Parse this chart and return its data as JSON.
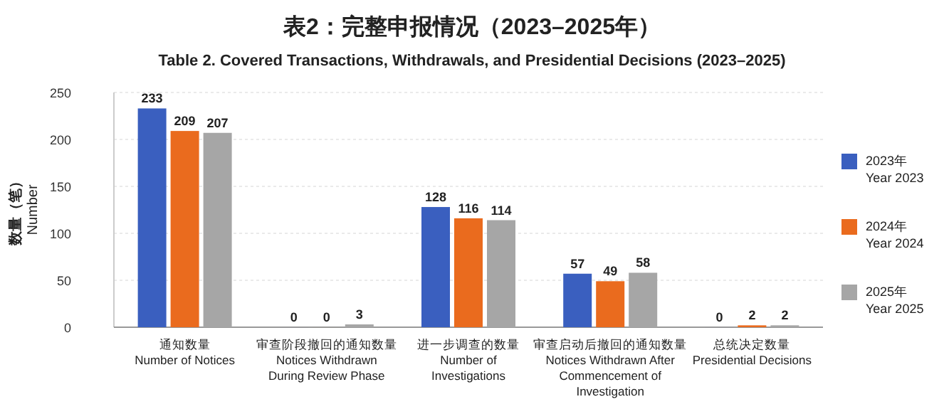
{
  "chart_data": {
    "type": "bar",
    "title": "表2：完整申报情况（2023–2025年）",
    "subtitle": "Table 2. Covered Transactions, Withdrawals, and Presidential Decisions (2023–2025)",
    "ylabel": "数量（笔）\nNumber",
    "categories": [
      "通知数量\nNumber of Notices",
      "审查阶段撤回的通知数量\nNotices Withdrawn\nDuring Review Phase",
      "进一步调查的数量\nNumber of\nInvestigations",
      "审查启动后撤回的通知数量\nNotices Withdrawn After\nCommencement of\nInvestigation",
      "总统决定数量\nPresidential Decisions"
    ],
    "series": [
      {
        "name": "2023年\nYear 2023",
        "color": "#3a5fbf",
        "values": [
          233,
          0,
          128,
          57,
          0
        ]
      },
      {
        "name": "2024年\nYear 2024",
        "color": "#ea6b1e",
        "values": [
          209,
          0,
          116,
          49,
          2
        ]
      },
      {
        "name": "2025年\nYear 2025",
        "color": "#a6a6a6",
        "values": [
          207,
          3,
          114,
          58,
          2
        ]
      }
    ],
    "ylim": [
      0,
      250
    ],
    "yticks": [
      0,
      50,
      100,
      150,
      200,
      250
    ],
    "grid": "y",
    "legend": "right",
    "data_labels": true
  }
}
